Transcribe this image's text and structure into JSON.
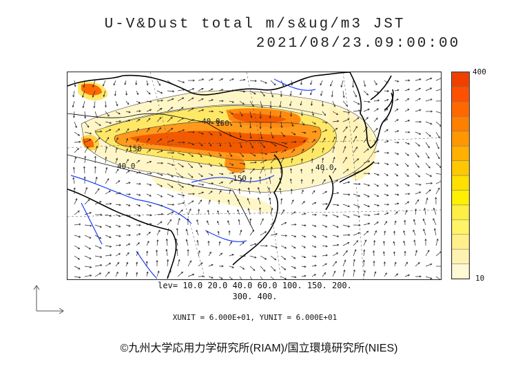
{
  "title": {
    "line1": "U-V&Dust total m/s&ug/m3 JST",
    "line2": "2021/08/23.09:00:00"
  },
  "colorbar": {
    "max_label": "400",
    "min_label": "10",
    "colors": [
      "#fff8d4",
      "#fff2b0",
      "#fff08a",
      "#fff466",
      "#ffee44",
      "#fff000",
      "#ffe000",
      "#ffc800",
      "#ffb000",
      "#ff9800",
      "#ff8000",
      "#ff6800",
      "#ff5000",
      "#f04000"
    ]
  },
  "contour_labels": [
    "40.0",
    "150",
    "150",
    "40.0",
    "150",
    "40.0"
  ],
  "levels": {
    "line1": "lev= 10.0 20.0 40.0 60.0 100. 150. 200.",
    "line2": "300. 400."
  },
  "units": "XUNIT = 6.000E+01, YUNIT = 6.000E+01",
  "copyright": "©九州大学応用力学研究所(RIAM)/国立環境研究所(NIES)"
}
